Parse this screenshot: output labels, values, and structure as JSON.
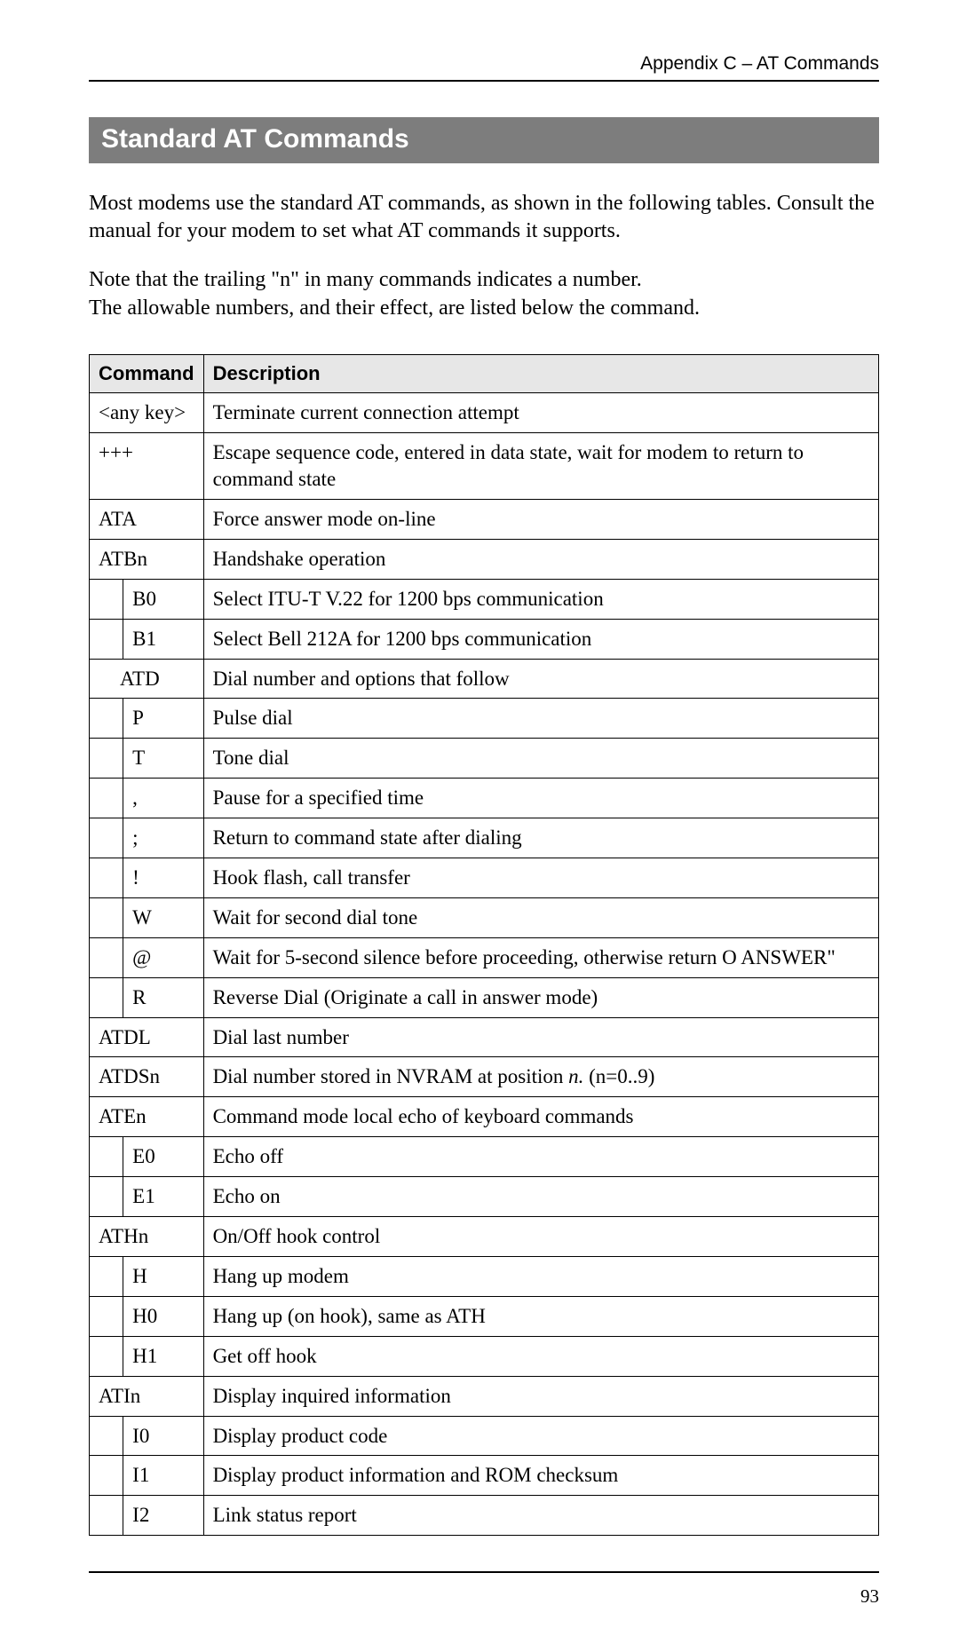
{
  "header": {
    "running_head": "Appendix C – AT Commands",
    "section_title": "Standard AT Commands"
  },
  "paragraphs": {
    "intro": "Most modems use the standard AT commands, as shown in the following tables. Consult the manual for your modem to set what AT commands it supports.",
    "note_line1": "Note that the trailing \"n\" in many commands indicates a number.",
    "note_line2": "The allowable numbers, and their effect, are listed below the command."
  },
  "table": {
    "headers": {
      "command": "Command",
      "description": "Description"
    },
    "rows": [
      {
        "indent": false,
        "cmd": "<any key>",
        "desc": "Terminate current connection attempt"
      },
      {
        "indent": false,
        "cmd": "+++",
        "desc": "Escape sequence code, entered in data state, wait for modem to return to command state"
      },
      {
        "indent": false,
        "cmd": "ATA",
        "desc": "Force answer mode on-line"
      },
      {
        "indent": false,
        "cmd": "ATBn",
        "desc": "Handshake operation"
      },
      {
        "indent": true,
        "cmd": "B0",
        "desc": "Select ITU-T V.22 for 1200 bps communication"
      },
      {
        "indent": true,
        "cmd": "B1",
        "desc": "Select Bell 212A for 1200 bps communication"
      },
      {
        "indent": false,
        "cmd": "ATD",
        "desc": "Dial number and options that follow",
        "cmd_indent_soft": true
      },
      {
        "indent": true,
        "cmd": "P",
        "desc": "Pulse dial"
      },
      {
        "indent": true,
        "cmd": "T",
        "desc": "Tone dial"
      },
      {
        "indent": true,
        "cmd": ",",
        "desc": "Pause for a specified time"
      },
      {
        "indent": true,
        "cmd": ";",
        "desc": "Return to command state after dialing"
      },
      {
        "indent": true,
        "cmd": "!",
        "desc": "Hook flash, call transfer"
      },
      {
        "indent": true,
        "cmd": "W",
        "desc": "Wait for second dial tone"
      },
      {
        "indent": true,
        "cmd": "@",
        "desc": "Wait for 5-second silence before proceeding, otherwise return O ANSWER\""
      },
      {
        "indent": true,
        "cmd": "R",
        "desc": "Reverse Dial (Originate a call in answer mode)"
      },
      {
        "indent": false,
        "cmd": "ATDL",
        "desc": "Dial last number"
      },
      {
        "indent": false,
        "cmd": "ATDSn",
        "desc_html": "Dial number stored in NVRAM at position <i>n.</i> (n=0..9)"
      },
      {
        "indent": false,
        "cmd": "ATEn",
        "desc": "Command mode local echo of keyboard commands"
      },
      {
        "indent": true,
        "cmd": "E0",
        "desc": "Echo off"
      },
      {
        "indent": true,
        "cmd": "E1",
        "desc": "Echo on"
      },
      {
        "indent": false,
        "cmd": "ATHn",
        "desc": "On/Off hook control"
      },
      {
        "indent": true,
        "cmd": "H",
        "desc": "Hang up modem"
      },
      {
        "indent": true,
        "cmd": "H0",
        "desc": "Hang up (on hook), same as ATH"
      },
      {
        "indent": true,
        "cmd": "H1",
        "desc": "Get off hook"
      },
      {
        "indent": false,
        "cmd": "ATIn",
        "desc": "Display inquired information"
      },
      {
        "indent": true,
        "cmd": "I0",
        "desc": "Display product code"
      },
      {
        "indent": true,
        "cmd": "I1",
        "desc": "Display product information and ROM checksum"
      },
      {
        "indent": true,
        "cmd": "I2",
        "desc": "Link status report"
      }
    ]
  },
  "footer": {
    "page_number": "93"
  },
  "style": {
    "header_bg": "#7d7d7d",
    "header_fg": "#ffffff",
    "th_bg": "#e7e7e7",
    "border_color": "#000000",
    "body_font": "Times New Roman",
    "heading_font": "Arial"
  }
}
